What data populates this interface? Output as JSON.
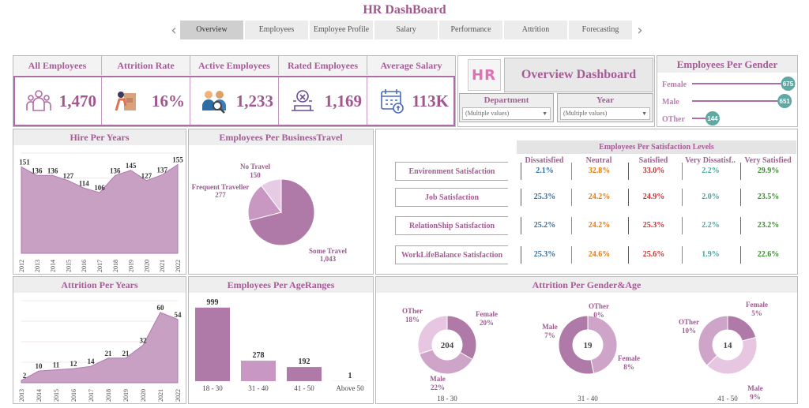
{
  "title": "HR DashBoard",
  "tabs": [
    "Overview",
    "Employees",
    "Employee Profile",
    "Salary",
    "Performance",
    "Attrition",
    "Forecasting"
  ],
  "kpis": [
    {
      "label": "All Employees",
      "value": "1,470",
      "icon": "people-group-icon"
    },
    {
      "label": "Attrition Rate",
      "value": "16%",
      "icon": "person-leaving-icon"
    },
    {
      "label": "Active Employees",
      "value": "1,233",
      "icon": "people-search-icon"
    },
    {
      "label": "Rated Employees",
      "value": "1,169",
      "icon": "rated-person-icon"
    },
    {
      "label": "Average Salary",
      "value": "113K",
      "icon": "salary-calendar-icon"
    }
  ],
  "overview": {
    "logo": "HR",
    "title": "Overview Dashboard"
  },
  "filters": [
    {
      "label": "Department",
      "value": "(Multiple values)"
    },
    {
      "label": "Year",
      "value": "(Multiple values)"
    }
  ],
  "gender": {
    "title": "Employees Per Gender",
    "items": [
      {
        "name": "Female",
        "value": 675
      },
      {
        "name": "Male",
        "value": 651
      },
      {
        "name": "OTher",
        "value": 144
      }
    ]
  },
  "hire": {
    "title": "Hire Per Years",
    "years": [
      "2012",
      "2013",
      "2014",
      "2015",
      "2016",
      "2017",
      "2018",
      "2019",
      "2020",
      "2021",
      "2022"
    ],
    "values": [
      151,
      136,
      136,
      127,
      114,
      106,
      136,
      145,
      127,
      137,
      155
    ]
  },
  "travel": {
    "title": "Employees Per BusinessTravel",
    "items": [
      {
        "name": "No Travel",
        "value": "150"
      },
      {
        "name": "Frequent Traveller",
        "value": "277"
      },
      {
        "name": "Some Travel",
        "value": "1,043"
      }
    ]
  },
  "satisfaction": {
    "title": "Employees  Per Satisfaction  Levels",
    "cols": [
      "Dissatisfied",
      "Neutral",
      "Satisfied",
      "Very Dissatisf..",
      "Very Satisfied"
    ],
    "colors": [
      "#2e6da4",
      "#e07b10",
      "#cc2b2b",
      "#4aa3a0",
      "#3b8a2e"
    ],
    "rows": [
      {
        "label": "Environment Satisfaction",
        "values": [
          "2.1%",
          "32.8%",
          "33.0%",
          "2.2%",
          "29.9%"
        ]
      },
      {
        "label": "Job Satisfaction",
        "values": [
          "25.3%",
          "24.2%",
          "24.9%",
          "2.0%",
          "23.5%"
        ]
      },
      {
        "label": "RelationShip Satisfaction",
        "values": [
          "25.2%",
          "24.2%",
          "25.3%",
          "2.2%",
          "23.2%"
        ]
      },
      {
        "label": "WorkLifeBalance Satisfaction",
        "values": [
          "25.3%",
          "24.6%",
          "25.6%",
          "1.9%",
          "22.6%"
        ]
      }
    ]
  },
  "attrition": {
    "title": "Attrition Per Years",
    "years": [
      "2013",
      "2014",
      "2015",
      "2016",
      "2017",
      "2018",
      "2019",
      "2020",
      "2021",
      "2022"
    ],
    "values": [
      2,
      10,
      11,
      12,
      14,
      21,
      21,
      32,
      60,
      54
    ]
  },
  "age": {
    "title": "Employees Per AgeRanges",
    "cats": [
      "18 - 30",
      "31 - 40",
      "41 - 50",
      "Above 50"
    ],
    "values": [
      999,
      278,
      192,
      1
    ]
  },
  "ga": {
    "title": "Attrition Per Gender&Age",
    "groups": [
      {
        "cat": "18 - 30",
        "total": "204",
        "labels": [
          {
            "t": "Female",
            "p": "20%"
          },
          {
            "t": "Male",
            "p": "22%"
          },
          {
            "t": "OTher",
            "p": "18%"
          }
        ]
      },
      {
        "cat": "31 - 40",
        "total": "19",
        "labels": [
          {
            "t": "OTher",
            "p": "0%"
          },
          {
            "t": "Male",
            "p": "7%"
          },
          {
            "t": "Female",
            "p": "8%"
          }
        ]
      },
      {
        "cat": "41 - 50",
        "total": "14",
        "labels": [
          {
            "t": "Female",
            "p": "5%"
          },
          {
            "t": "OTher",
            "p": "10%"
          },
          {
            "t": "Male",
            "p": "9%"
          }
        ]
      }
    ]
  },
  "chart_data": [
    {
      "type": "area",
      "title": "Hire Per Years",
      "x": [
        "2012",
        "2013",
        "2014",
        "2015",
        "2016",
        "2017",
        "2018",
        "2019",
        "2020",
        "2021",
        "2022"
      ],
      "values": [
        151,
        136,
        136,
        127,
        114,
        106,
        136,
        145,
        127,
        137,
        155
      ]
    },
    {
      "type": "pie",
      "title": "Employees Per BusinessTravel",
      "categories": [
        "Some Travel",
        "Frequent Traveller",
        "No Travel"
      ],
      "values": [
        1043,
        277,
        150
      ]
    },
    {
      "type": "area",
      "title": "Attrition Per Years",
      "x": [
        "2013",
        "2014",
        "2015",
        "2016",
        "2017",
        "2018",
        "2019",
        "2020",
        "2021",
        "2022"
      ],
      "values": [
        2,
        10,
        11,
        12,
        14,
        21,
        21,
        32,
        60,
        54
      ]
    },
    {
      "type": "bar",
      "title": "Employees Per AgeRanges",
      "categories": [
        "18 - 30",
        "31 - 40",
        "41 - 50",
        "Above 50"
      ],
      "values": [
        999,
        278,
        192,
        1
      ]
    },
    {
      "type": "bar",
      "title": "Employees Per Gender",
      "categories": [
        "Female",
        "Male",
        "OTher"
      ],
      "values": [
        675,
        651,
        144
      ]
    }
  ]
}
